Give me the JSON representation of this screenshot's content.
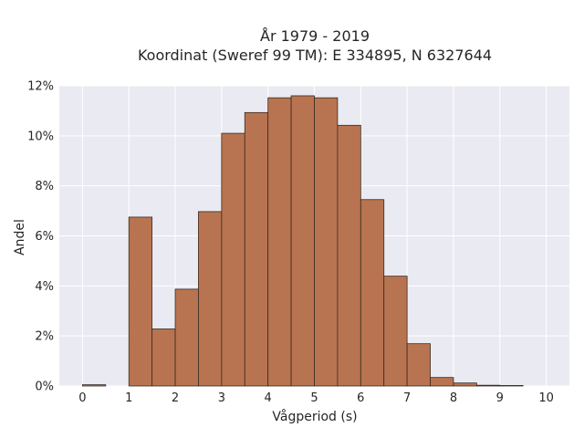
{
  "chart_data": {
    "type": "bar",
    "title_lines": [
      "År 1979 - 2019",
      "Koordinat (Sweref 99 TM): E 334895, N 6327644"
    ],
    "xlabel": "Vågperiod (s)",
    "ylabel": "Andel",
    "bin_width": 0.5,
    "bin_starts": [
      0,
      0.5,
      1.0,
      1.5,
      2.0,
      2.5,
      3.0,
      3.5,
      4.0,
      4.5,
      5.0,
      5.5,
      6.0,
      6.5,
      7.0,
      7.5,
      8.0,
      8.5,
      9.0,
      9.5
    ],
    "values": [
      0.05,
      0,
      6.75,
      2.28,
      3.87,
      6.97,
      10.1,
      10.93,
      11.52,
      11.6,
      11.52,
      10.42,
      7.45,
      4.39,
      1.69,
      0.34,
      0.12,
      0.03,
      0.02,
      0
    ],
    "value_unit": "%",
    "xlim": [
      -0.5,
      10.5
    ],
    "ylim": [
      0,
      12
    ],
    "xticks": [
      0,
      1,
      2,
      3,
      4,
      5,
      6,
      7,
      8,
      9,
      10
    ],
    "xtick_labels": [
      "0",
      "1",
      "2",
      "3",
      "4",
      "5",
      "6",
      "7",
      "8",
      "9",
      "10"
    ],
    "yticks": [
      0,
      2,
      4,
      6,
      8,
      10,
      12
    ],
    "ytick_labels": [
      "0%",
      "2%",
      "4%",
      "6%",
      "8%",
      "10%",
      "12%"
    ],
    "grid": true,
    "colors": {
      "bar_fill": "#b87450",
      "bar_edge": "#3a2a20",
      "plot_bg": "#eaeaf2",
      "grid": "#ffffff"
    }
  }
}
